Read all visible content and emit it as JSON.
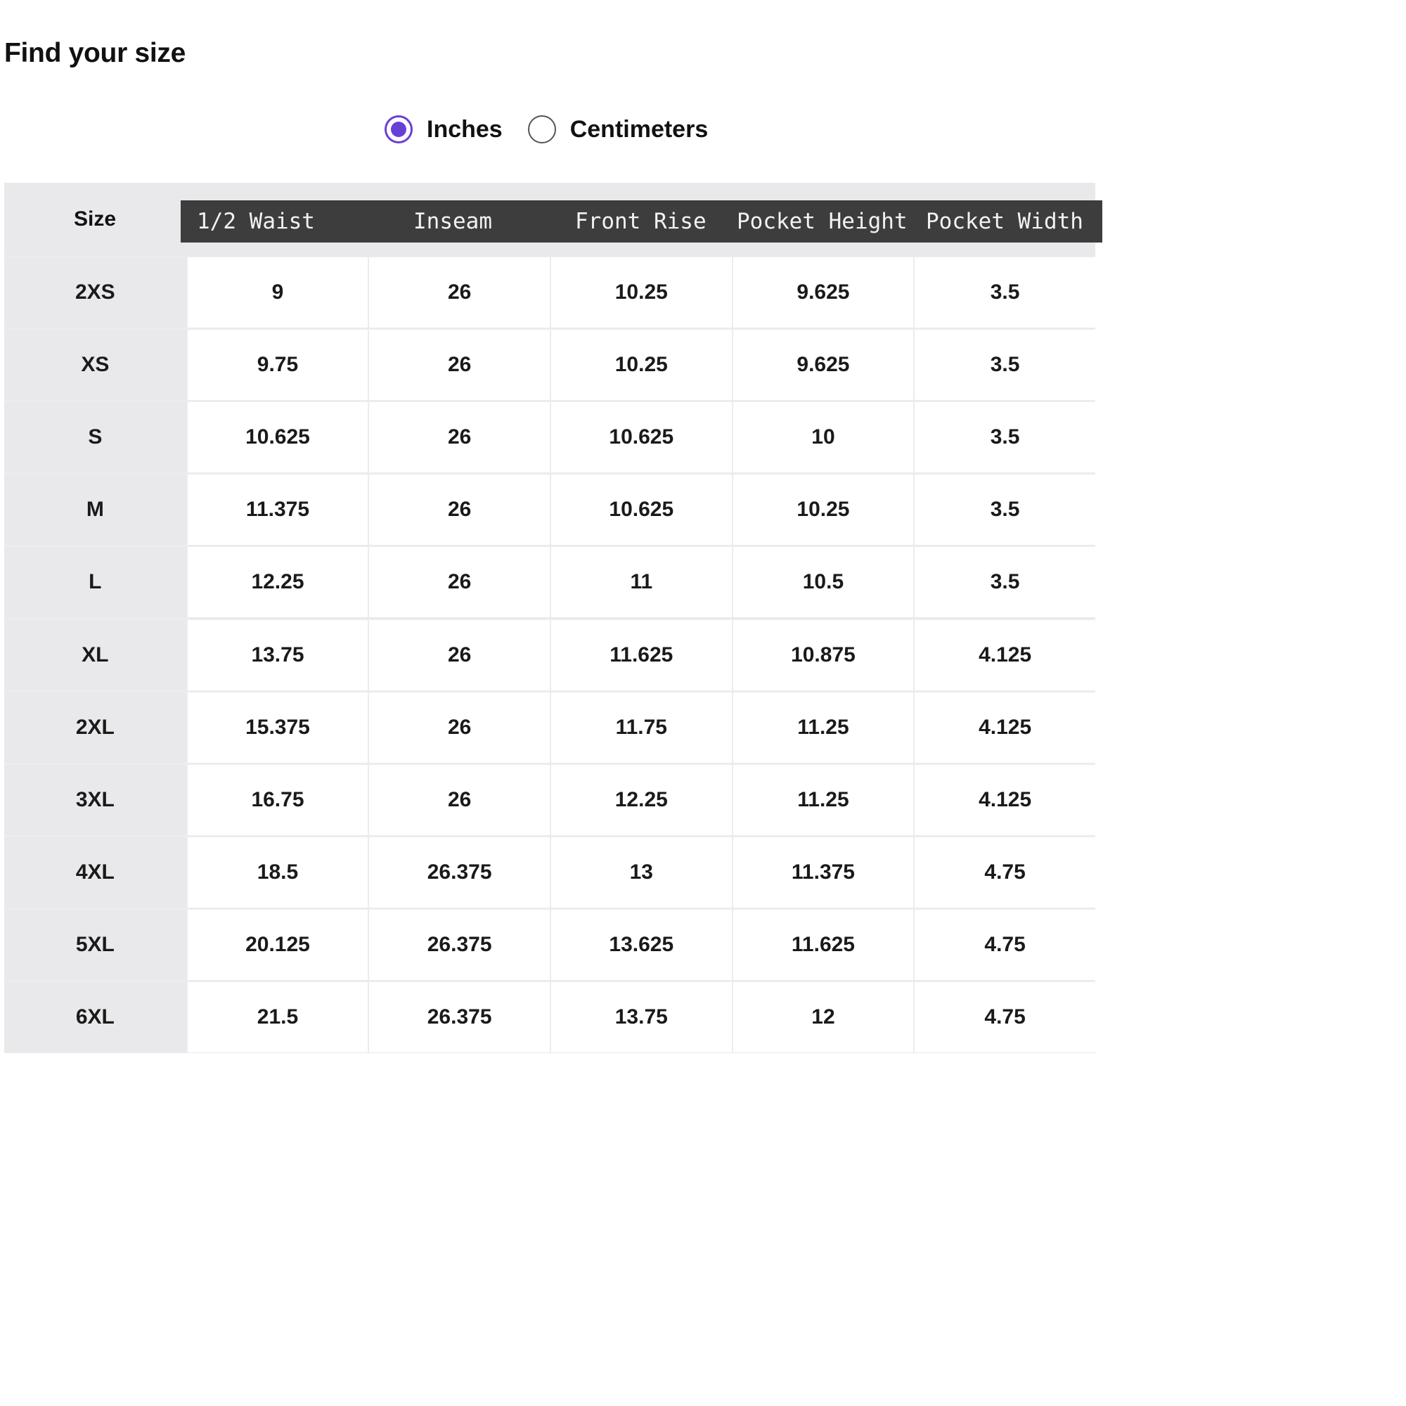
{
  "page": {
    "title": "Find your size"
  },
  "units": {
    "options": [
      {
        "label": "Inches",
        "selected": true
      },
      {
        "label": "Centimeters",
        "selected": false
      }
    ],
    "accent_color": "#6a3fd6"
  },
  "table": {
    "size_header": "Size",
    "columns": [
      "1/2 Waist",
      "Inseam",
      "Front Rise",
      "Pocket Height",
      "Pocket Width"
    ],
    "rows": [
      {
        "size": "2XS",
        "values": [
          "9",
          "26",
          "10.25",
          "9.625",
          "3.5"
        ]
      },
      {
        "size": "XS",
        "values": [
          "9.75",
          "26",
          "10.25",
          "9.625",
          "3.5"
        ]
      },
      {
        "size": "S",
        "values": [
          "10.625",
          "26",
          "10.625",
          "10",
          "3.5"
        ]
      },
      {
        "size": "M",
        "values": [
          "11.375",
          "26",
          "10.625",
          "10.25",
          "3.5"
        ]
      },
      {
        "size": "L",
        "values": [
          "12.25",
          "26",
          "11",
          "10.5",
          "3.5"
        ]
      },
      {
        "size": "XL",
        "values": [
          "13.75",
          "26",
          "11.625",
          "10.875",
          "4.125"
        ]
      },
      {
        "size": "2XL",
        "values": [
          "15.375",
          "26",
          "11.75",
          "11.25",
          "4.125"
        ]
      },
      {
        "size": "3XL",
        "values": [
          "16.75",
          "26",
          "12.25",
          "11.25",
          "4.125"
        ]
      },
      {
        "size": "4XL",
        "values": [
          "18.5",
          "26.375",
          "13",
          "11.375",
          "4.75"
        ]
      },
      {
        "size": "5XL",
        "values": [
          "20.125",
          "26.375",
          "13.625",
          "11.625",
          "4.75"
        ]
      },
      {
        "size": "6XL",
        "values": [
          "21.5",
          "26.375",
          "13.75",
          "12",
          "4.75"
        ]
      }
    ],
    "header_bar_color": "#3d3d3d",
    "size_column_color": "#e9e9eb"
  }
}
